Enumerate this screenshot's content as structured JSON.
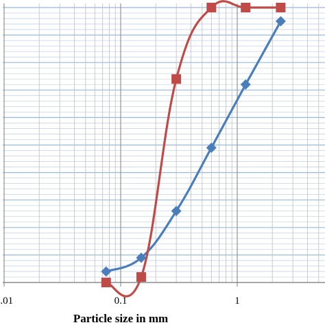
{
  "chart_data": {
    "type": "line",
    "x_scale": "log",
    "xlim": [
      0.01,
      10
    ],
    "ylim": [
      0,
      100
    ],
    "grid": true,
    "xlabel": "Particle size in mm",
    "ylabel": "",
    "x_tick_labels": [
      "0.01",
      "0.1",
      "1"
    ],
    "x_tick_values": [
      0.01,
      0.1,
      1
    ],
    "series": [
      {
        "color": "#4a7ebb",
        "marker": "diamond",
        "x": [
          0.075,
          0.15,
          0.3,
          0.6,
          1.18,
          2.36
        ],
        "y": [
          4,
          9,
          26,
          49,
          72,
          95
        ]
      },
      {
        "color": "#be4b48",
        "marker": "square",
        "x": [
          0.075,
          0.15,
          0.3,
          0.6,
          1.18,
          2.36
        ],
        "y": [
          0,
          2,
          74,
          100,
          100,
          100
        ]
      }
    ]
  }
}
